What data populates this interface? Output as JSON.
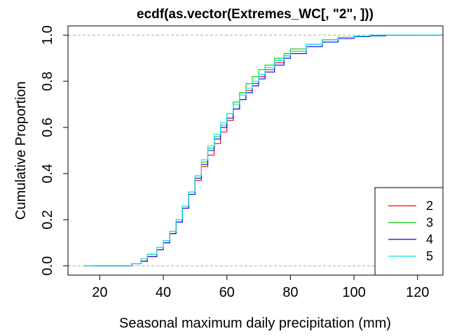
{
  "chart_data": {
    "type": "line",
    "title": "ecdf(as.vector(Extremes_WC[, \"2\", ]))",
    "xlabel": "Seasonal maximum daily precipitation (mm)",
    "ylabel": "Cumulative Proportion",
    "xlim": [
      10,
      128
    ],
    "ylim": [
      -0.04,
      1.04
    ],
    "xticks": [
      20,
      40,
      60,
      80,
      100,
      120
    ],
    "yticks": [
      0.0,
      0.2,
      0.4,
      0.6,
      0.8,
      1.0
    ],
    "xtick_labels": [
      "20",
      "40",
      "60",
      "80",
      100,
      120
    ],
    "ytick_labels": [
      "0.0",
      "0.2",
      "0.4",
      "0.6",
      "0.8",
      "1.0"
    ],
    "reference_lines": [
      0,
      1
    ],
    "legend_position": "bottom-right",
    "series": [
      {
        "name": "2",
        "color": "#ff0000",
        "x": [
          27,
          30,
          33,
          35,
          38,
          40,
          42,
          44,
          46,
          48,
          50,
          52,
          54,
          56,
          58,
          60,
          62,
          64,
          66,
          68,
          70,
          72,
          75,
          78,
          80,
          85,
          90,
          95,
          100,
          105,
          110,
          115
        ],
        "y": [
          0.0,
          0.01,
          0.02,
          0.04,
          0.07,
          0.1,
          0.14,
          0.19,
          0.25,
          0.31,
          0.37,
          0.43,
          0.48,
          0.53,
          0.58,
          0.63,
          0.68,
          0.72,
          0.76,
          0.79,
          0.82,
          0.85,
          0.88,
          0.91,
          0.93,
          0.96,
          0.98,
          0.99,
          0.995,
          1.0,
          1.0,
          1.0
        ]
      },
      {
        "name": "3",
        "color": "#00cd00",
        "x": [
          25,
          30,
          33,
          35,
          38,
          40,
          42,
          44,
          46,
          48,
          50,
          52,
          54,
          56,
          58,
          60,
          62,
          64,
          66,
          68,
          70,
          72,
          75,
          78,
          80,
          85,
          90,
          95,
          100,
          105,
          110,
          115
        ],
        "y": [
          0.0,
          0.01,
          0.03,
          0.05,
          0.08,
          0.11,
          0.15,
          0.2,
          0.26,
          0.32,
          0.39,
          0.45,
          0.51,
          0.56,
          0.61,
          0.66,
          0.71,
          0.75,
          0.79,
          0.82,
          0.85,
          0.87,
          0.9,
          0.92,
          0.94,
          0.96,
          0.98,
          0.99,
          0.995,
          1.0,
          1.0,
          1.0
        ]
      },
      {
        "name": "4",
        "color": "#0000ff",
        "x": [
          27,
          30,
          33,
          35,
          38,
          40,
          42,
          44,
          46,
          48,
          50,
          52,
          54,
          56,
          58,
          60,
          62,
          64,
          66,
          68,
          70,
          72,
          75,
          78,
          80,
          85,
          90,
          95,
          100,
          105,
          110,
          118
        ],
        "y": [
          0.0,
          0.01,
          0.02,
          0.04,
          0.07,
          0.1,
          0.14,
          0.19,
          0.25,
          0.31,
          0.38,
          0.44,
          0.5,
          0.55,
          0.6,
          0.64,
          0.68,
          0.72,
          0.75,
          0.78,
          0.81,
          0.84,
          0.87,
          0.9,
          0.92,
          0.95,
          0.97,
          0.985,
          0.993,
          0.997,
          0.999,
          1.0
        ]
      },
      {
        "name": "5",
        "color": "#00e5e5",
        "x": [
          26,
          30,
          33,
          35,
          38,
          40,
          42,
          44,
          46,
          48,
          50,
          52,
          54,
          56,
          58,
          60,
          62,
          64,
          66,
          68,
          70,
          72,
          75,
          78,
          80,
          85,
          90,
          95,
          100,
          105,
          110,
          115
        ],
        "y": [
          0.0,
          0.01,
          0.03,
          0.05,
          0.08,
          0.11,
          0.15,
          0.2,
          0.26,
          0.32,
          0.39,
          0.46,
          0.52,
          0.57,
          0.62,
          0.66,
          0.7,
          0.74,
          0.77,
          0.8,
          0.83,
          0.86,
          0.89,
          0.91,
          0.93,
          0.96,
          0.98,
          0.99,
          0.995,
          1.0,
          1.0,
          1.0
        ]
      }
    ]
  }
}
